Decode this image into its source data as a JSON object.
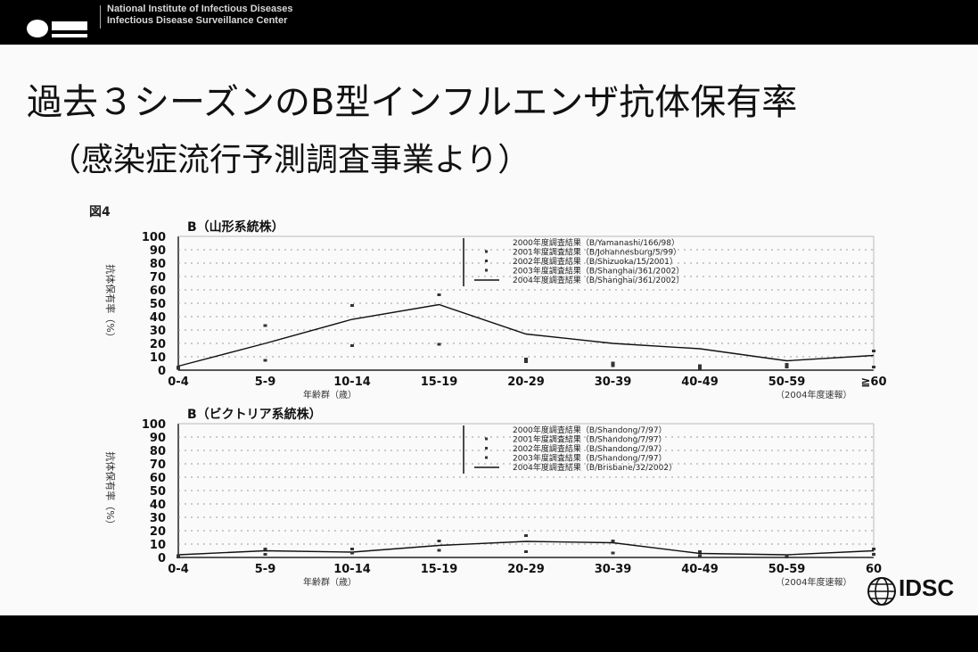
{
  "header": {
    "institute_line1": "National Institute of Infectious Diseases",
    "institute_line2": "Infectious Disease Surveillance Center"
  },
  "slide": {
    "title": "過去３シーズンのB型インフルエンザ抗体保有率",
    "subtitle": "（感染症流行予測調査事業より）",
    "figure_label": "図4",
    "footer_logo": "IDSC"
  },
  "chart_data": [
    {
      "type": "line",
      "title": "B（山形系統株）",
      "ylabel": "抗体保有率（%）",
      "xlabel": "年齢群（歳）",
      "categories": [
        "0-4",
        "5-9",
        "10-14",
        "15-19",
        "20-29",
        "30-39",
        "40-49",
        "50-59",
        "≧60"
      ],
      "ylim": [
        0,
        100
      ],
      "yticks": [
        0,
        10,
        20,
        30,
        40,
        50,
        60,
        70,
        80,
        90,
        100
      ],
      "legend": [
        "2000年度調査結果（B/Yamanashi/166/98）",
        "2001年度調査結果（B/Johannesburg/5/99）",
        "2002年度調査結果（B/Shizuoka/15/2001）",
        "2003年度調査結果（B/Shanghai/361/2002）",
        "2004年度調査結果（B/Shanghai/361/2002）"
      ],
      "series": [
        {
          "name": "2004年度調査結果（B/Shanghai/361/2002）",
          "values": [
            3,
            20,
            38,
            49,
            27,
            20,
            16,
            7,
            11
          ]
        },
        {
          "name": "2001年度調査結果（B/Johannesburg/5/99）",
          "values": [
            2,
            33,
            48,
            56,
            8,
            5,
            3,
            2,
            14
          ]
        },
        {
          "name": "2002年度調査結果（B/Shizuoka/15/2001）",
          "values": [
            1,
            7,
            18,
            19,
            6,
            3,
            1,
            4,
            2
          ]
        }
      ],
      "source_note": "（2004年度速報）"
    },
    {
      "type": "line",
      "title": "B（ビクトリア系統株）",
      "ylabel": "抗体保有率（%）",
      "xlabel": "年齢群（歳）",
      "categories": [
        "0-4",
        "5-9",
        "10-14",
        "15-19",
        "20-29",
        "30-39",
        "40-49",
        "50-59",
        "60"
      ],
      "ylim": [
        0,
        100
      ],
      "yticks": [
        0,
        10,
        20,
        30,
        40,
        50,
        60,
        70,
        80,
        90,
        100
      ],
      "legend": [
        "2000年度調査結果（B/Shandong/7/97）",
        "2001年度調査結果（B/Shandong/7/97）",
        "2002年度調査結果（B/Shandong/7/97）",
        "2003年度調査結果（B/Shandong/7/97）",
        "2004年度調査結果（B/Brisbane/32/2002）"
      ],
      "series": [
        {
          "name": "2004年度調査結果（B/Brisbane/32/2002）",
          "values": [
            2,
            5,
            4,
            9,
            12,
            11,
            3,
            2,
            5
          ]
        },
        {
          "name": "2001年度調査結果（B/Shandong/7/97）",
          "values": [
            1,
            6,
            6,
            12,
            16,
            12,
            4,
            1,
            6
          ]
        },
        {
          "name": "2002年度調査結果（B/Shandong/7/97）",
          "values": [
            0,
            2,
            3,
            5,
            4,
            3,
            1,
            0,
            2
          ]
        }
      ],
      "source_note": "（2004年度速報）"
    }
  ]
}
